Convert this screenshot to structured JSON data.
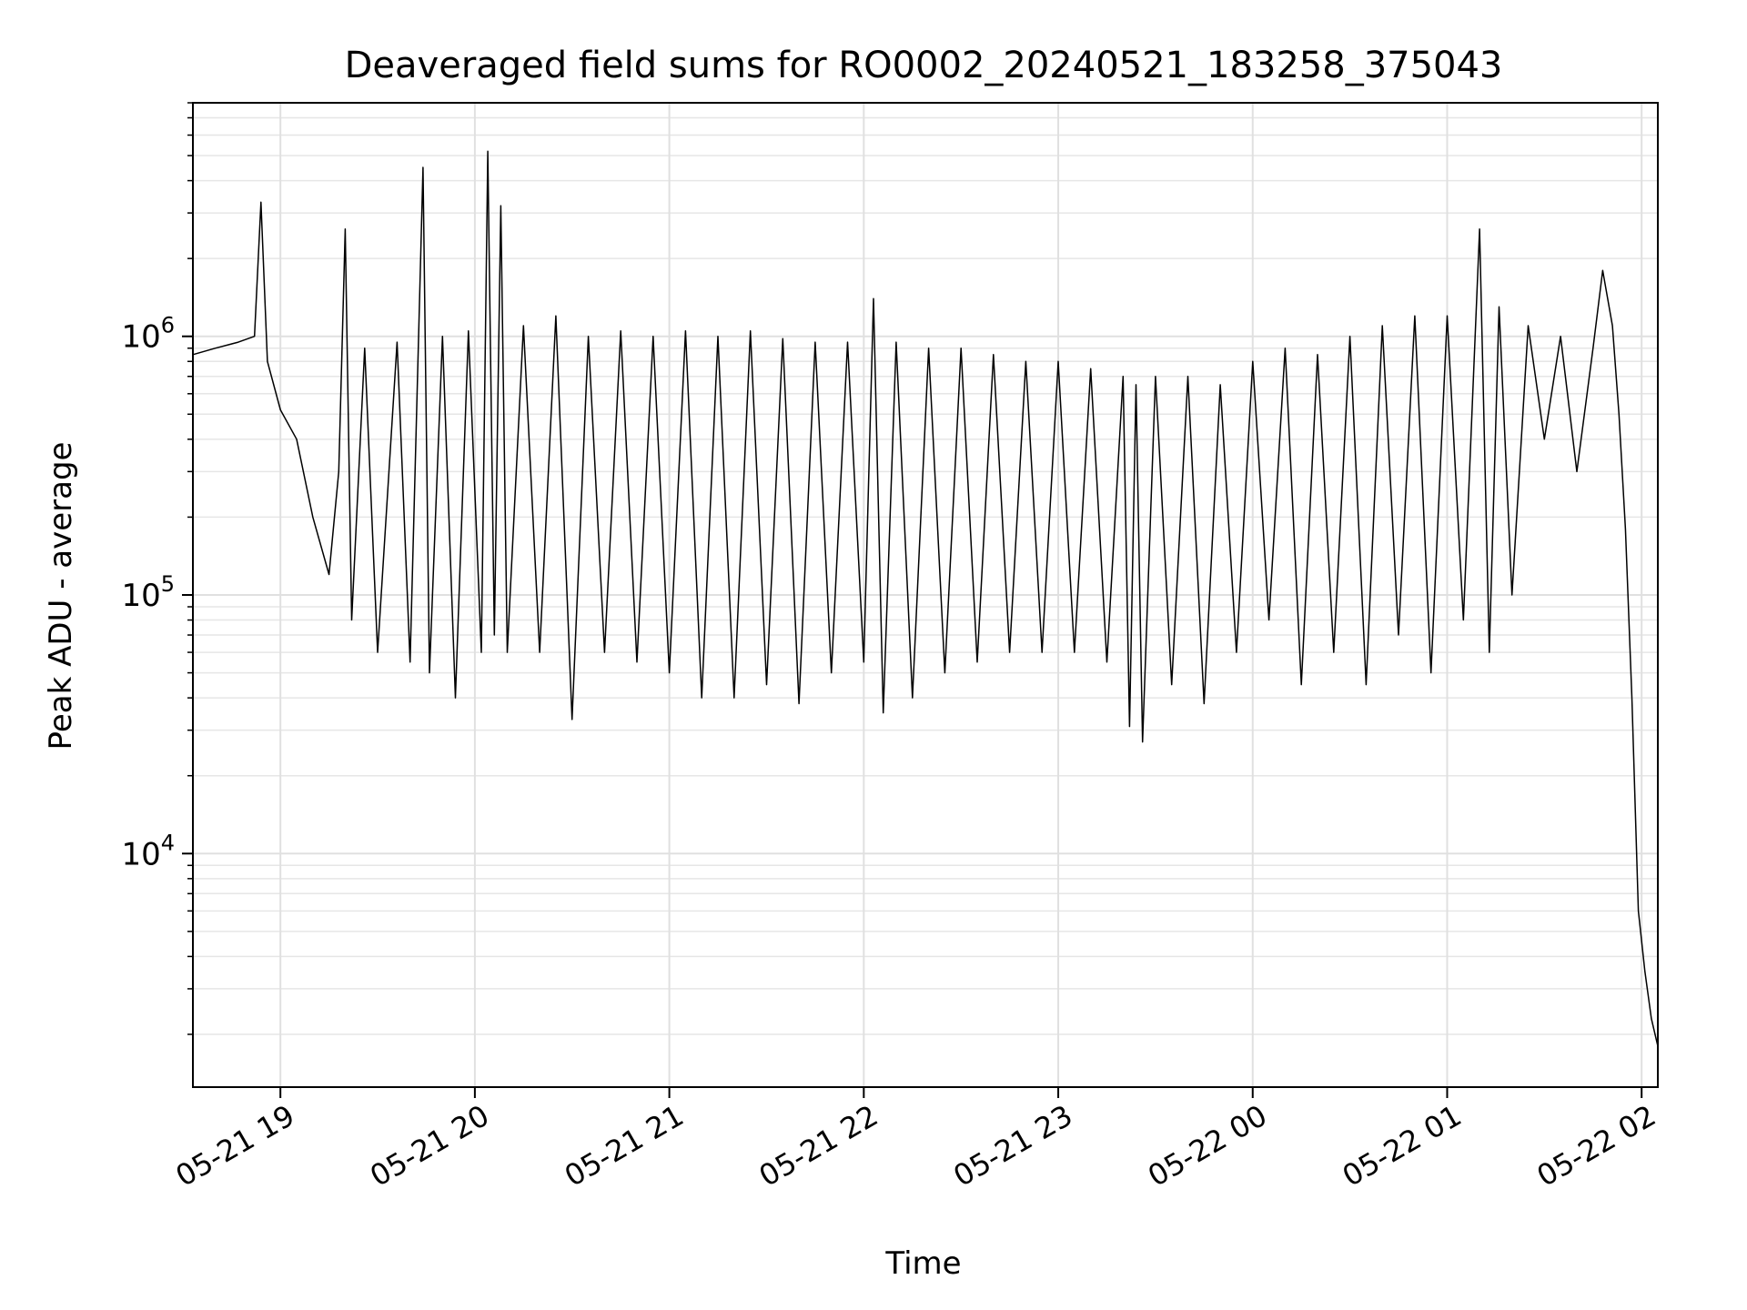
{
  "chart_data": {
    "type": "line",
    "title": "Deaveraged field sums for RO0002_20240521_183258_375043",
    "xlabel": "Time",
    "ylabel": "Peak ADU - average",
    "x_scale": "time",
    "y_scale": "log",
    "xlim": [
      "2024-05-21T18:33",
      "2024-05-22T02:05"
    ],
    "ylim": [
      1250,
      8000000
    ],
    "grid": true,
    "x_ticks": [
      {
        "t": "2024-05-21T19:00",
        "label": "05-21 19"
      },
      {
        "t": "2024-05-21T20:00",
        "label": "05-21 20"
      },
      {
        "t": "2024-05-21T21:00",
        "label": "05-21 21"
      },
      {
        "t": "2024-05-21T22:00",
        "label": "05-21 22"
      },
      {
        "t": "2024-05-21T23:00",
        "label": "05-21 23"
      },
      {
        "t": "2024-05-22T00:00",
        "label": "05-22 00"
      },
      {
        "t": "2024-05-22T01:00",
        "label": "05-22 01"
      },
      {
        "t": "2024-05-22T02:00",
        "label": "05-22 02"
      }
    ],
    "y_ticks": [
      {
        "v": 10000,
        "base": "10",
        "exp": "4"
      },
      {
        "v": 100000,
        "base": "10",
        "exp": "5"
      },
      {
        "v": 1000000,
        "base": "10",
        "exp": "6"
      }
    ],
    "series": [
      {
        "color": "#000000",
        "points": [
          [
            "2024-05-21T18:33",
            850000
          ],
          [
            "2024-05-21T18:40",
            900000
          ],
          [
            "2024-05-21T18:47",
            950000
          ],
          [
            "2024-05-21T18:52",
            1000000
          ],
          [
            "2024-05-21T18:54",
            3300000
          ],
          [
            "2024-05-21T18:56",
            800000
          ],
          [
            "2024-05-21T19:00",
            520000
          ],
          [
            "2024-05-21T19:05",
            400000
          ],
          [
            "2024-05-21T19:10",
            200000
          ],
          [
            "2024-05-21T19:15",
            120000
          ],
          [
            "2024-05-21T19:18",
            300000
          ],
          [
            "2024-05-21T19:20",
            2600000
          ],
          [
            "2024-05-21T19:22",
            80000
          ],
          [
            "2024-05-21T19:26",
            900000
          ],
          [
            "2024-05-21T19:30",
            60000
          ],
          [
            "2024-05-21T19:36",
            950000
          ],
          [
            "2024-05-21T19:40",
            55000
          ],
          [
            "2024-05-21T19:44",
            4500000
          ],
          [
            "2024-05-21T19:46",
            50000
          ],
          [
            "2024-05-21T19:50",
            1000000
          ],
          [
            "2024-05-21T19:54",
            40000
          ],
          [
            "2024-05-21T19:58",
            1050000
          ],
          [
            "2024-05-21T20:02",
            60000
          ],
          [
            "2024-05-21T20:04",
            5200000
          ],
          [
            "2024-05-21T20:06",
            70000
          ],
          [
            "2024-05-21T20:08",
            3200000
          ],
          [
            "2024-05-21T20:10",
            60000
          ],
          [
            "2024-05-21T20:15",
            1100000
          ],
          [
            "2024-05-21T20:20",
            60000
          ],
          [
            "2024-05-21T20:25",
            1200000
          ],
          [
            "2024-05-21T20:30",
            33000
          ],
          [
            "2024-05-21T20:35",
            1000000
          ],
          [
            "2024-05-21T20:40",
            60000
          ],
          [
            "2024-05-21T20:45",
            1050000
          ],
          [
            "2024-05-21T20:50",
            55000
          ],
          [
            "2024-05-21T20:55",
            1000000
          ],
          [
            "2024-05-21T21:00",
            50000
          ],
          [
            "2024-05-21T21:05",
            1050000
          ],
          [
            "2024-05-21T21:10",
            40000
          ],
          [
            "2024-05-21T21:15",
            1000000
          ],
          [
            "2024-05-21T21:20",
            40000
          ],
          [
            "2024-05-21T21:25",
            1050000
          ],
          [
            "2024-05-21T21:30",
            45000
          ],
          [
            "2024-05-21T21:35",
            980000
          ],
          [
            "2024-05-21T21:40",
            38000
          ],
          [
            "2024-05-21T21:45",
            950000
          ],
          [
            "2024-05-21T21:50",
            50000
          ],
          [
            "2024-05-21T21:55",
            950000
          ],
          [
            "2024-05-21T22:00",
            55000
          ],
          [
            "2024-05-21T22:03",
            1400000
          ],
          [
            "2024-05-21T22:06",
            35000
          ],
          [
            "2024-05-21T22:10",
            950000
          ],
          [
            "2024-05-21T22:15",
            40000
          ],
          [
            "2024-05-21T22:20",
            900000
          ],
          [
            "2024-05-21T22:25",
            50000
          ],
          [
            "2024-05-21T22:30",
            900000
          ],
          [
            "2024-05-21T22:35",
            55000
          ],
          [
            "2024-05-21T22:40",
            850000
          ],
          [
            "2024-05-21T22:45",
            60000
          ],
          [
            "2024-05-21T22:50",
            800000
          ],
          [
            "2024-05-21T22:55",
            60000
          ],
          [
            "2024-05-21T23:00",
            800000
          ],
          [
            "2024-05-21T23:05",
            60000
          ],
          [
            "2024-05-21T23:10",
            750000
          ],
          [
            "2024-05-21T23:15",
            55000
          ],
          [
            "2024-05-21T23:20",
            700000
          ],
          [
            "2024-05-21T23:22",
            31000
          ],
          [
            "2024-05-21T23:24",
            650000
          ],
          [
            "2024-05-21T23:26",
            27000
          ],
          [
            "2024-05-21T23:30",
            700000
          ],
          [
            "2024-05-21T23:35",
            45000
          ],
          [
            "2024-05-21T23:40",
            700000
          ],
          [
            "2024-05-21T23:45",
            38000
          ],
          [
            "2024-05-21T23:50",
            650000
          ],
          [
            "2024-05-21T23:55",
            60000
          ],
          [
            "2024-05-22T00:00",
            800000
          ],
          [
            "2024-05-22T00:05",
            80000
          ],
          [
            "2024-05-22T00:10",
            900000
          ],
          [
            "2024-05-22T00:15",
            45000
          ],
          [
            "2024-05-22T00:20",
            850000
          ],
          [
            "2024-05-22T00:25",
            60000
          ],
          [
            "2024-05-22T00:30",
            1000000
          ],
          [
            "2024-05-22T00:35",
            45000
          ],
          [
            "2024-05-22T00:40",
            1100000
          ],
          [
            "2024-05-22T00:45",
            70000
          ],
          [
            "2024-05-22T00:50",
            1200000
          ],
          [
            "2024-05-22T00:55",
            50000
          ],
          [
            "2024-05-22T01:00",
            1200000
          ],
          [
            "2024-05-22T01:05",
            80000
          ],
          [
            "2024-05-22T01:10",
            2600000
          ],
          [
            "2024-05-22T01:13",
            60000
          ],
          [
            "2024-05-22T01:16",
            1300000
          ],
          [
            "2024-05-22T01:20",
            100000
          ],
          [
            "2024-05-22T01:25",
            1100000
          ],
          [
            "2024-05-22T01:30",
            400000
          ],
          [
            "2024-05-22T01:35",
            1000000
          ],
          [
            "2024-05-22T01:40",
            300000
          ],
          [
            "2024-05-22T01:45",
            900000
          ],
          [
            "2024-05-22T01:48",
            1800000
          ],
          [
            "2024-05-22T01:51",
            1100000
          ],
          [
            "2024-05-22T01:53",
            500000
          ],
          [
            "2024-05-22T01:55",
            180000
          ],
          [
            "2024-05-22T01:57",
            40000
          ],
          [
            "2024-05-22T01:59",
            6000
          ],
          [
            "2024-05-22T02:01",
            3500.0
          ],
          [
            "2024-05-22T02:03",
            2300
          ],
          [
            "2024-05-22T02:05",
            1800
          ]
        ]
      }
    ]
  }
}
